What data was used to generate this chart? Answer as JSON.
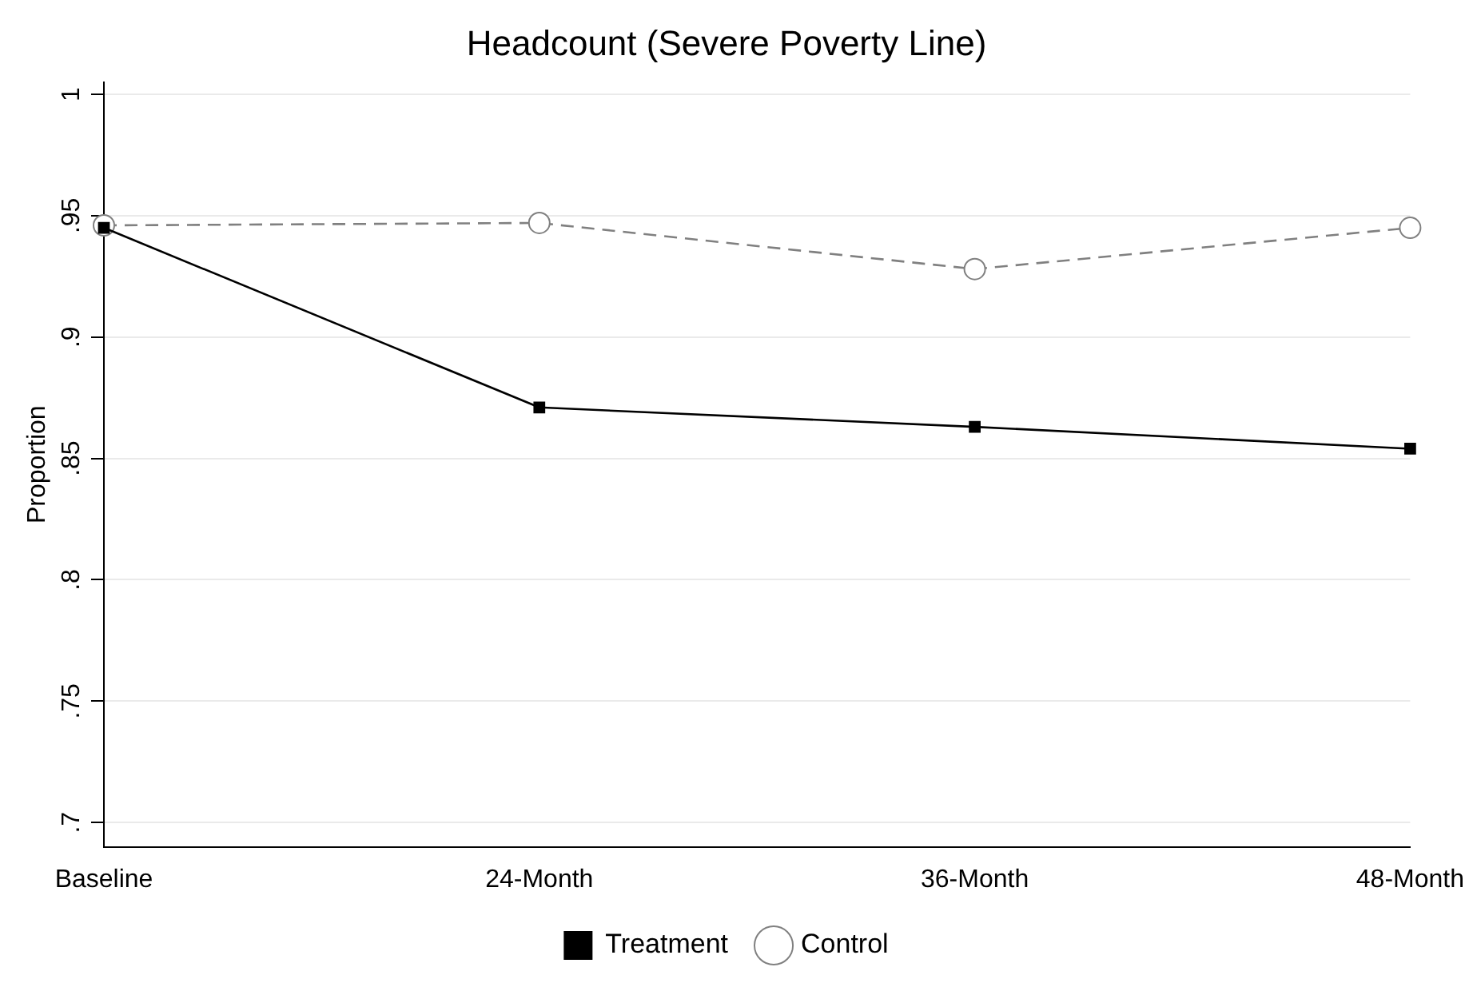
{
  "chart_data": {
    "type": "line",
    "title": "Headcount (Severe Poverty Line)",
    "ylabel": "Proportion",
    "categories": [
      "Baseline",
      "24-Month",
      "36-Month",
      "48-Month"
    ],
    "series": [
      {
        "name": "Treatment",
        "color": "#000000",
        "values": [
          0.945,
          0.871,
          0.863,
          0.854
        ],
        "marker": "square",
        "line_style": "solid"
      },
      {
        "name": "Control",
        "color": "#808080",
        "values": [
          0.946,
          0.947,
          0.928,
          0.945
        ],
        "marker": "circle",
        "line_style": "dashed"
      }
    ],
    "ylim": [
      0.69,
      1.005
    ],
    "yticks": [
      {
        "value": 0.7,
        "label": ".7"
      },
      {
        "value": 0.75,
        "label": ".75"
      },
      {
        "value": 0.8,
        "label": ".8"
      },
      {
        "value": 0.85,
        "label": ".85"
      },
      {
        "value": 0.9,
        "label": ".9"
      },
      {
        "value": 0.95,
        "label": ".95"
      },
      {
        "value": 1,
        "label": "1"
      }
    ],
    "grid": "y",
    "legend": "bottom"
  }
}
